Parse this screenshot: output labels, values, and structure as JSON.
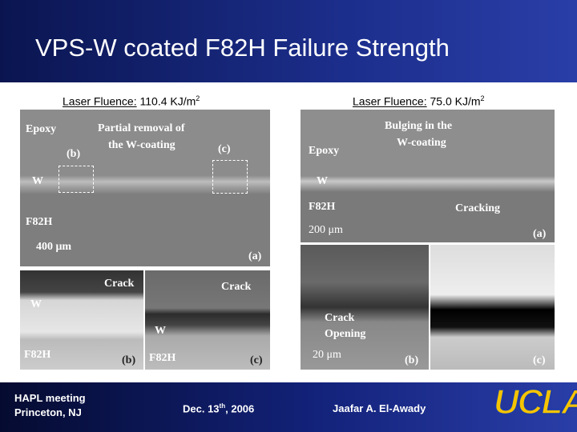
{
  "title": "VPS-W coated F82H Failure Strength",
  "left": {
    "caption": {
      "label": "Laser Fluence:",
      "value": "110.4 KJ/m",
      "sup": "2"
    },
    "panel_a": [
      "Epoxy",
      "Partial removal of",
      "the W-coating",
      "(b)",
      "(c)",
      "W",
      "F82H",
      "400 μm",
      "(a)"
    ],
    "panel_b": [
      "Crack",
      "W",
      "F82H",
      "(b)"
    ],
    "panel_c": [
      "Crack",
      "W",
      "F82H",
      "(c)"
    ]
  },
  "right": {
    "caption": {
      "label": "Laser Fluence:",
      "value": "75.0 KJ/m",
      "sup": "2"
    },
    "panel_a": [
      "Bulging in the",
      "W-coating",
      "Epoxy",
      "W",
      "F82H",
      "Cracking",
      "200 μm",
      "(a)"
    ],
    "panel_b": [
      "Crack",
      "Opening",
      "20 μm",
      "(b)"
    ],
    "panel_c": [
      "(c)"
    ]
  },
  "footer": {
    "meeting": [
      "HAPL meeting",
      "Princeton, NJ"
    ],
    "date": {
      "main": "Dec. 13",
      "sup": "th",
      "rest": ", 2006"
    },
    "author": "Jaafar A. El-Awady",
    "logo": "UCLA"
  }
}
